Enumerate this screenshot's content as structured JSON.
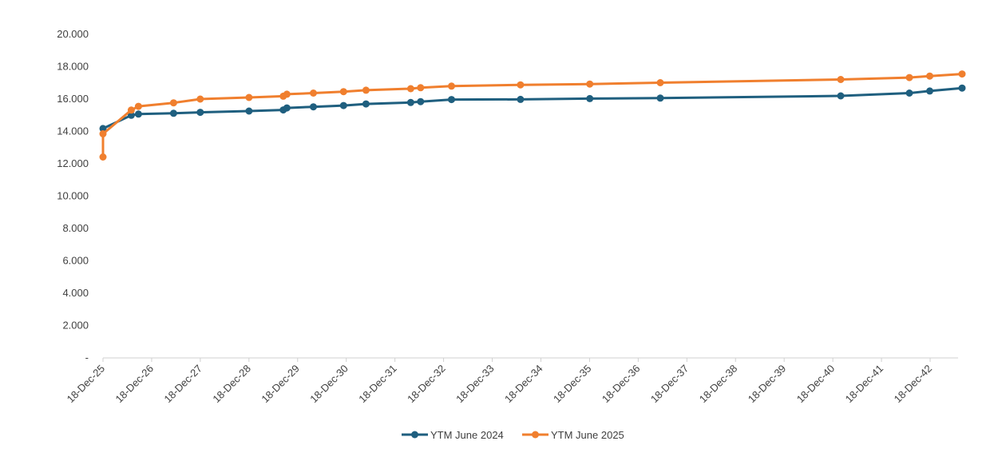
{
  "chart_data": {
    "type": "line",
    "title": "",
    "xlabel": "",
    "ylabel": "",
    "x_axis": {
      "type": "date",
      "range": [
        "2025-12-18",
        "2042-12-18"
      ],
      "tick_labels": [
        "18-Dec-25",
        "18-Dec-26",
        "18-Dec-27",
        "18-Dec-28",
        "18-Dec-29",
        "18-Dec-30",
        "18-Dec-31",
        "18-Dec-32",
        "18-Dec-33",
        "18-Dec-34",
        "18-Dec-35",
        "18-Dec-36",
        "18-Dec-37",
        "18-Dec-38",
        "18-Dec-39",
        "18-Dec-40",
        "18-Dec-41",
        "18-Dec-42"
      ]
    },
    "y_axis": {
      "range": [
        0,
        20
      ],
      "ticks": [
        0,
        2,
        4,
        6,
        8,
        10,
        12,
        14,
        16,
        18,
        20
      ],
      "tick_labels": [
        "-",
        "2.000",
        "4.000",
        "6.000",
        "8.000",
        "10.000",
        "12.000",
        "14.000",
        "16.000",
        "18.000",
        "20.000"
      ]
    },
    "grid": false,
    "legend_position": "bottom",
    "series": [
      {
        "name": "YTM June 2024",
        "color": "#1f5f7f",
        "points": [
          {
            "x": "2025-12-18",
            "y": 14.18
          },
          {
            "x": "2026-07-18",
            "y": 15.0
          },
          {
            "x": "2026-09-10",
            "y": 15.07
          },
          {
            "x": "2027-06-01",
            "y": 15.12
          },
          {
            "x": "2027-12-18",
            "y": 15.18
          },
          {
            "x": "2028-12-18",
            "y": 15.26
          },
          {
            "x": "2029-09-01",
            "y": 15.33
          },
          {
            "x": "2029-09-28",
            "y": 15.45
          },
          {
            "x": "2030-04-15",
            "y": 15.52
          },
          {
            "x": "2030-11-28",
            "y": 15.6
          },
          {
            "x": "2031-05-15",
            "y": 15.7
          },
          {
            "x": "2032-04-15",
            "y": 15.79
          },
          {
            "x": "2032-06-28",
            "y": 15.84
          },
          {
            "x": "2033-02-15",
            "y": 15.97
          },
          {
            "x": "2034-07-18",
            "y": 15.98
          },
          {
            "x": "2035-12-20",
            "y": 16.03
          },
          {
            "x": "2037-06-01",
            "y": 16.06
          },
          {
            "x": "2041-02-15",
            "y": 16.2
          },
          {
            "x": "2042-07-15",
            "y": 16.37
          },
          {
            "x": "2042-12-15",
            "y": 16.5
          },
          {
            "x": "2043-08-15",
            "y": 16.68
          }
        ]
      },
      {
        "name": "YTM June 2025",
        "color": "#f07f2e",
        "points": [
          {
            "x": "2025-12-18",
            "y": 12.42
          },
          {
            "x": "2025-12-18",
            "y": 13.85
          },
          {
            "x": "2026-07-18",
            "y": 15.32
          },
          {
            "x": "2026-09-10",
            "y": 15.55
          },
          {
            "x": "2027-06-01",
            "y": 15.77
          },
          {
            "x": "2027-12-18",
            "y": 16.0
          },
          {
            "x": "2028-12-18",
            "y": 16.1
          },
          {
            "x": "2029-09-01",
            "y": 16.18
          },
          {
            "x": "2029-09-28",
            "y": 16.3
          },
          {
            "x": "2030-04-15",
            "y": 16.37
          },
          {
            "x": "2030-11-28",
            "y": 16.46
          },
          {
            "x": "2031-05-15",
            "y": 16.55
          },
          {
            "x": "2032-04-15",
            "y": 16.64
          },
          {
            "x": "2032-06-28",
            "y": 16.7
          },
          {
            "x": "2033-02-15",
            "y": 16.8
          },
          {
            "x": "2034-07-18",
            "y": 16.88
          },
          {
            "x": "2035-12-20",
            "y": 16.93
          },
          {
            "x": "2037-06-01",
            "y": 17.01
          },
          {
            "x": "2041-02-15",
            "y": 17.21
          },
          {
            "x": "2042-07-15",
            "y": 17.33
          },
          {
            "x": "2042-12-15",
            "y": 17.42
          },
          {
            "x": "2043-08-15",
            "y": 17.55
          }
        ]
      }
    ]
  }
}
